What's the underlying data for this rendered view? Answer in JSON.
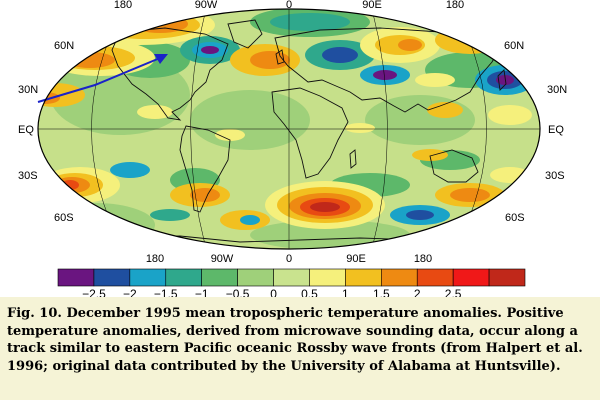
{
  "map": {
    "lon_labels_top": [
      "180",
      "90W",
      "0",
      "90E",
      "180"
    ],
    "lon_labels_bottom": [
      "180",
      "90W",
      "0",
      "90E",
      "180"
    ],
    "lat_labels_left": [
      "60N",
      "30N",
      "EQ",
      "30S",
      "60S"
    ],
    "lat_labels_right": [
      "60N",
      "30N",
      "EQ",
      "30S",
      "60S"
    ]
  },
  "colorbar": {
    "colors": [
      "#6a1580",
      "#1f4fa0",
      "#1aa3c8",
      "#2fa88c",
      "#5db86a",
      "#9fd07a",
      "#c9e38e",
      "#f5f07c",
      "#f2c020",
      "#ee8a12",
      "#e84a12",
      "#f01818",
      "#c0281a"
    ],
    "tick_labels": [
      "−2.5",
      "−2",
      "−1.5",
      "−1",
      "−0.5",
      "0",
      "0.5",
      "1",
      "1.5",
      "2",
      "2.5"
    ]
  },
  "caption": {
    "text": "Fig. 10.  December 1995 mean tropospheric temperature anomalies. Positive temperature anomalies, derived from microwave sounding data, occur along a track similar to eastern Pacific oceanic Rossby wave fronts (from Halpert et al. 1996; original data contributed by the University of Alabama at Huntsville)."
  }
}
